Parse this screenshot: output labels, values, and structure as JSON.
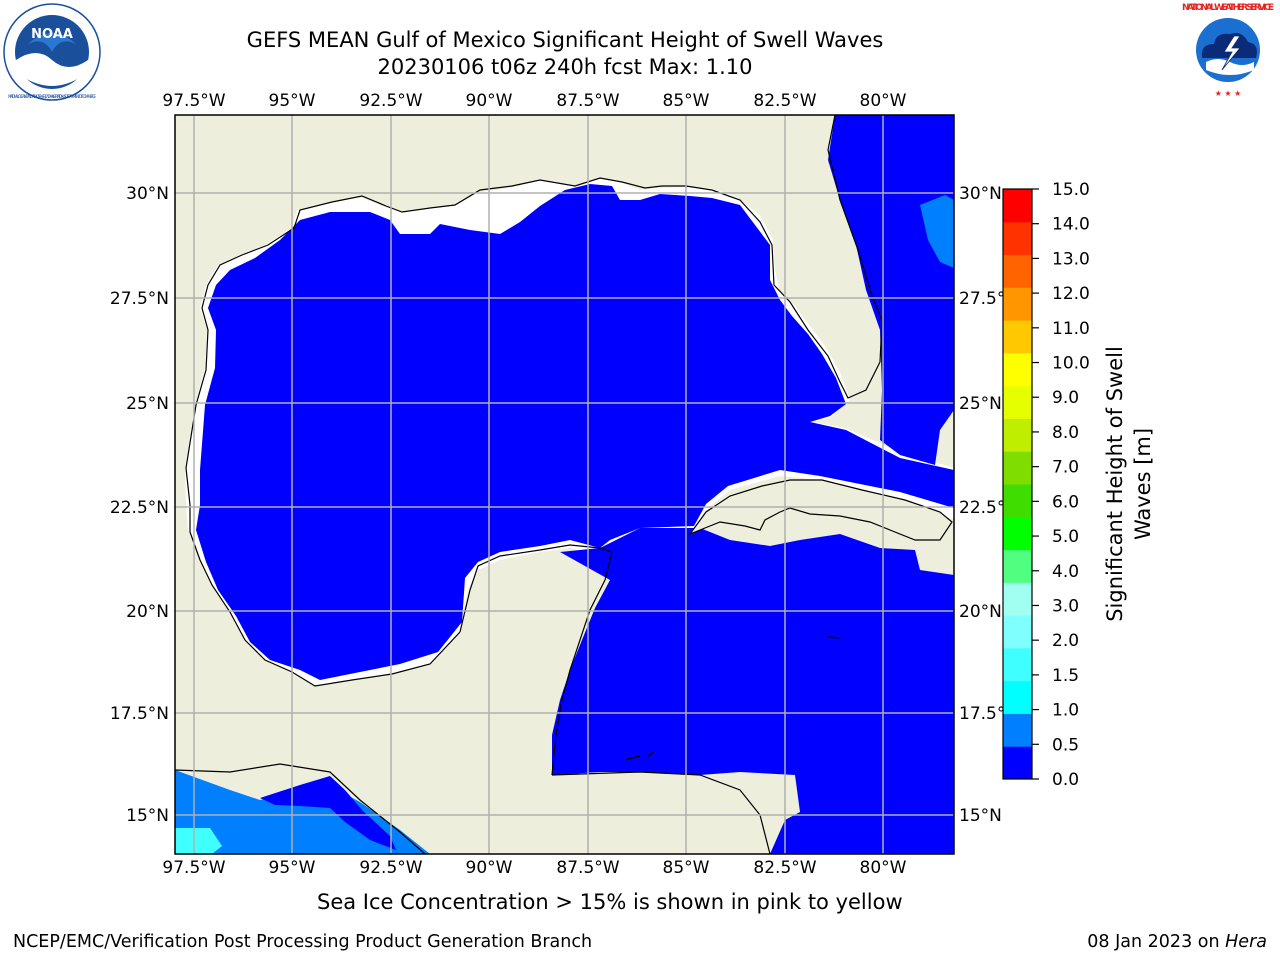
{
  "header": {
    "title_line1": "GEFS MEAN Gulf of Mexico Significant Height of Swell Waves",
    "title_line2": "20230106 t06z 240h fcst   Max: 1.10"
  },
  "logos": {
    "noara_text": "NOAA",
    "noaa_ring_text": "NATIONAL OCEANIC AND ATMOSPHERIC ADMINISTRATION · U.S. DEPARTMENT OF COMMERCE",
    "nws_ring_text": "NATIONAL WEATHER SERVICE"
  },
  "map": {
    "lon_labels": [
      "97.5°W",
      "95°W",
      "92.5°W",
      "90°W",
      "87.5°W",
      "85°W",
      "82.5°W",
      "80°W"
    ],
    "lat_labels": [
      "30°N",
      "27.5°N",
      "25°N",
      "22.5°N",
      "20°N",
      "17.5°N",
      "15°N"
    ],
    "colors": {
      "land": "#eeeedc",
      "water_low": "#0000ff",
      "grid": "#b0b0b0"
    }
  },
  "colorbar": {
    "label_line1": "Significant Height of Swell",
    "label_line2": "Waves [m]",
    "ticks": [
      "0.0",
      "0.5",
      "1.0",
      "1.5",
      "2.0",
      "3.0",
      "4.0",
      "5.0",
      "6.0",
      "7.0",
      "8.0",
      "9.0",
      "10.0",
      "11.0",
      "12.0",
      "13.0",
      "14.0",
      "15.0"
    ],
    "colors": [
      "#0000ff",
      "#0080ff",
      "#00ffff",
      "#40ffff",
      "#80ffff",
      "#a0fff0",
      "#50ff80",
      "#00ff00",
      "#40dd00",
      "#80dd00",
      "#c0ee00",
      "#e6ff00",
      "#ffff00",
      "#ffc800",
      "#ff9600",
      "#ff6400",
      "#ff3200",
      "#ff0000"
    ]
  },
  "footer": {
    "note": "Sea Ice Concentration > 15% is shown in pink to yellow",
    "left": "NCEP/EMC/Verification Post Processing Product Generation Branch",
    "right_prefix": "08 Jan 2023 on ",
    "right_host": "Hera"
  }
}
